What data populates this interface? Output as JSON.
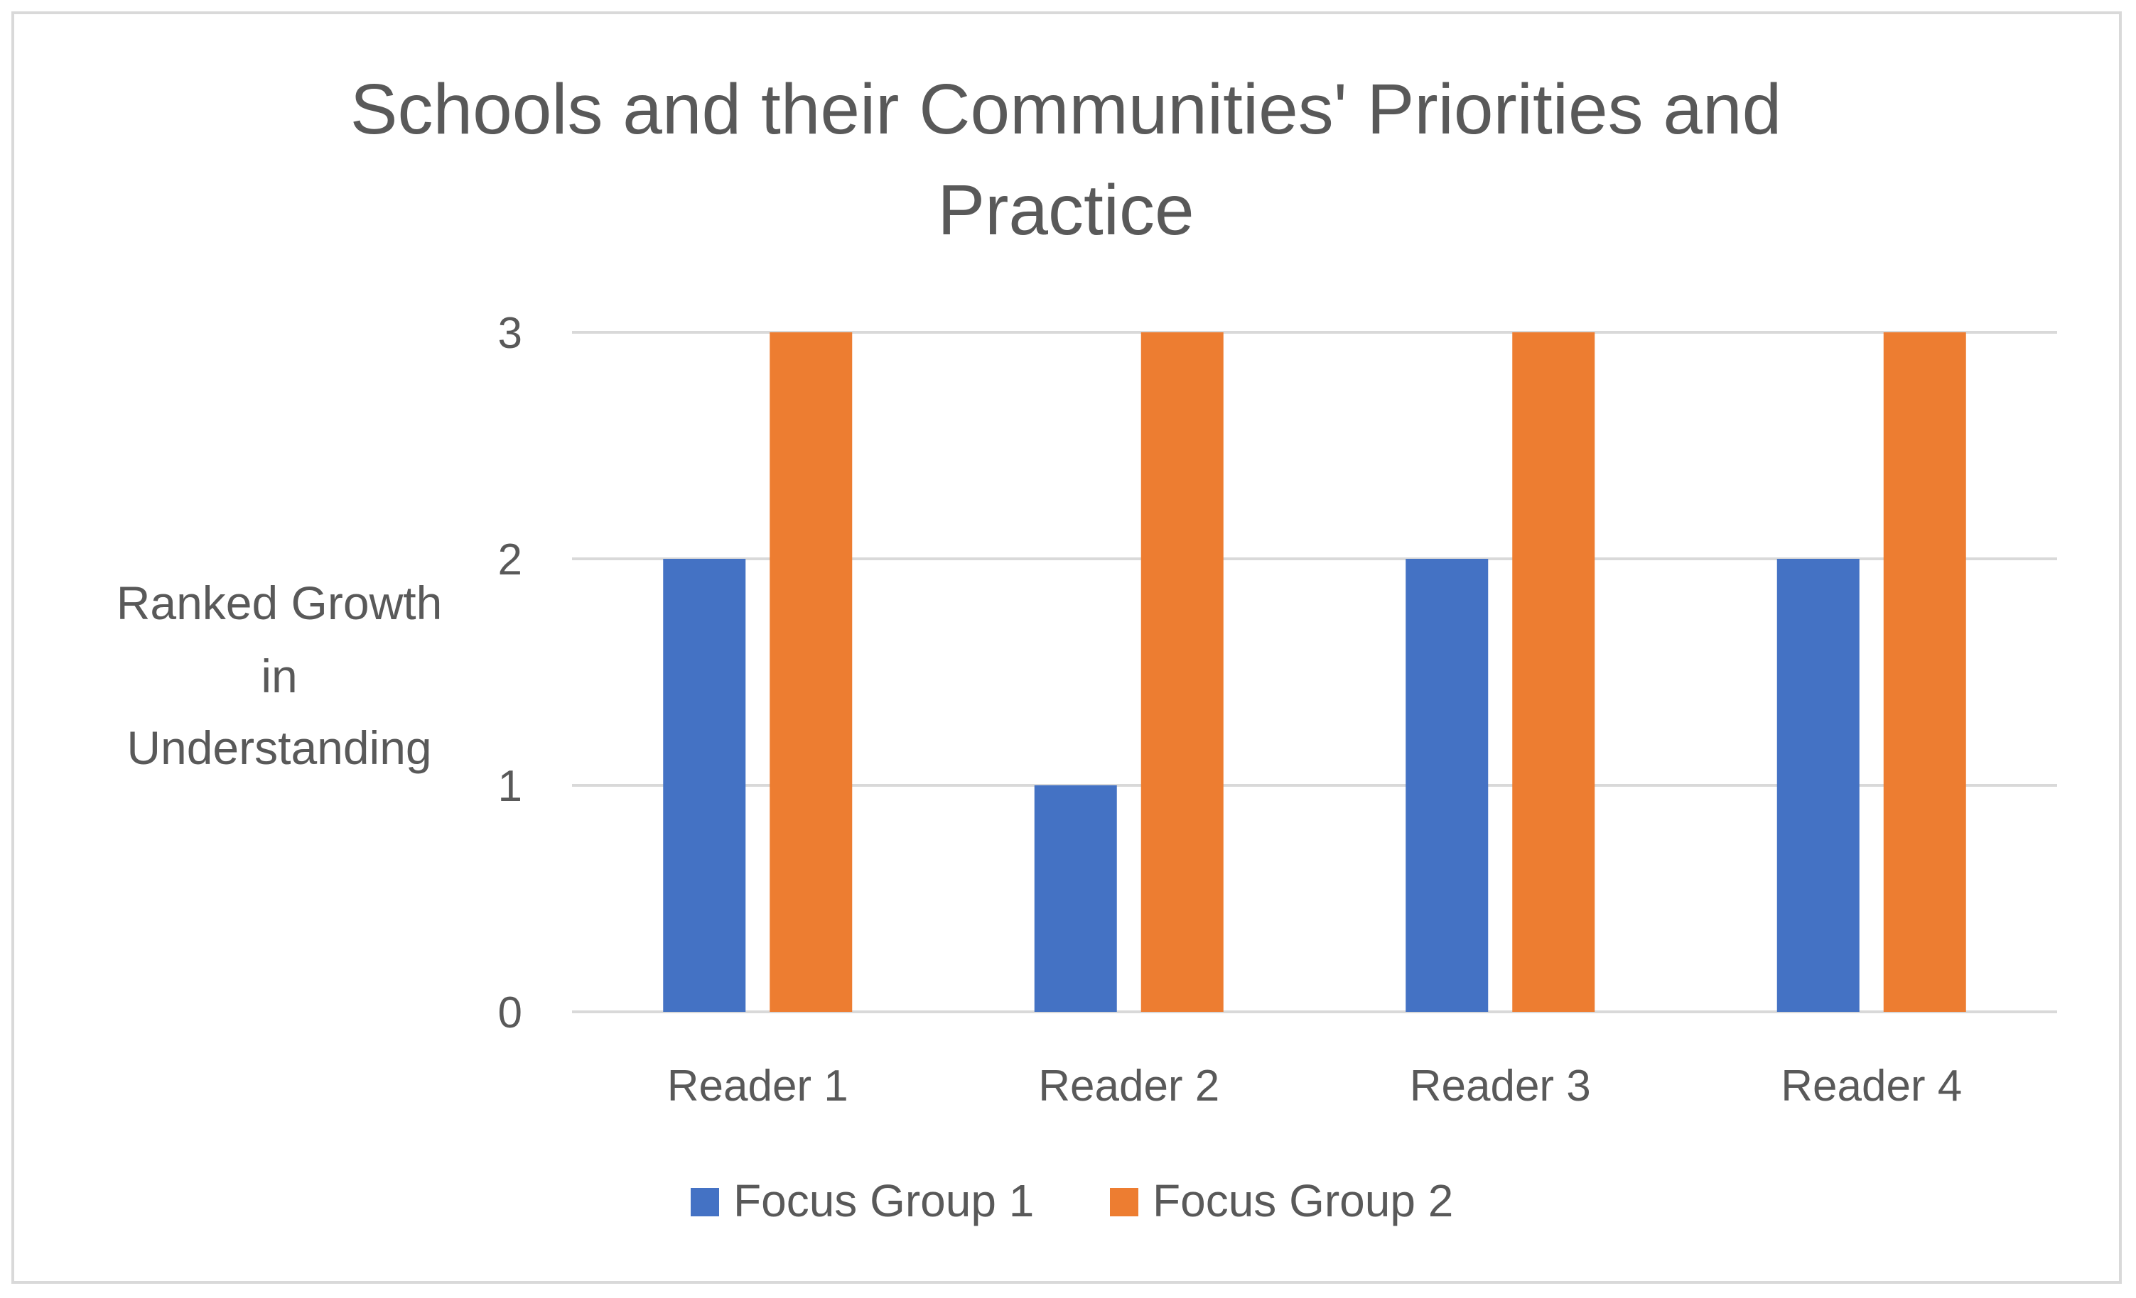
{
  "chart_data": {
    "type": "bar",
    "title_lines": [
      "Schools and their Communities' Priorities and",
      "Practice"
    ],
    "ylabel_lines": [
      "Ranked Growth",
      "in",
      "Understanding"
    ],
    "xlabel": "",
    "categories": [
      "Reader 1",
      "Reader 2",
      "Reader 3",
      "Reader 4"
    ],
    "series": [
      {
        "name": "Focus Group 1",
        "color": "#4472C4",
        "values": [
          2,
          1,
          2,
          2
        ]
      },
      {
        "name": "Focus Group 2",
        "color": "#ED7D31",
        "values": [
          3,
          3,
          3,
          3
        ]
      }
    ],
    "ylim": [
      0,
      3
    ],
    "yticks": [
      "0",
      "1",
      "2",
      "3"
    ],
    "grid": true,
    "legend_position": "bottom"
  }
}
